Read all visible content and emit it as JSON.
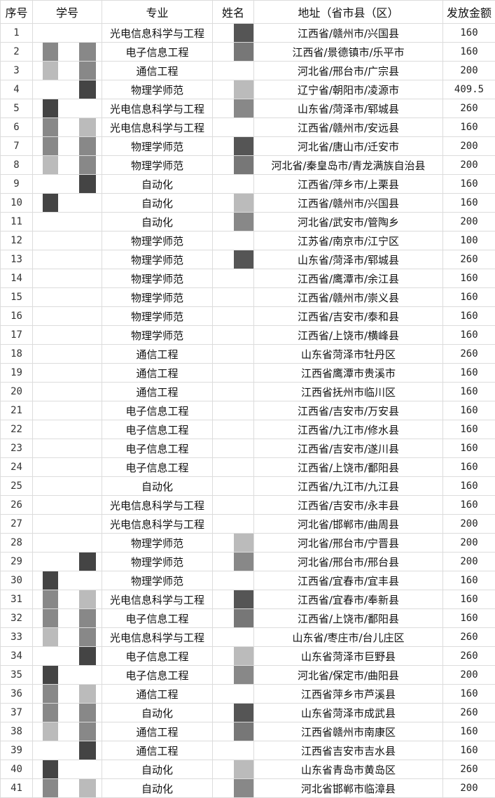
{
  "headers": [
    "序号",
    "学号",
    "专业",
    "姓名",
    "地址（省市县（区）",
    "发放金额"
  ],
  "rows": [
    {
      "no": "1",
      "major": "光电信息科学与工程",
      "address": "江西省/赣州市/兴国县",
      "amount": "160"
    },
    {
      "no": "2",
      "major": "电子信息工程",
      "address": "江西省/景德镇市/乐平市",
      "amount": "160"
    },
    {
      "no": "3",
      "major": "通信工程",
      "address": "河北省/邢台市/广宗县",
      "amount": "200"
    },
    {
      "no": "4",
      "major": "物理学师范",
      "address": "辽宁省/朝阳市/凌源市",
      "amount": "409.5"
    },
    {
      "no": "5",
      "major": "光电信息科学与工程",
      "address": "山东省/菏泽市/郓城县",
      "amount": "260"
    },
    {
      "no": "6",
      "major": "光电信息科学与工程",
      "address": "江西省/赣州市/安远县",
      "amount": "160"
    },
    {
      "no": "7",
      "major": "物理学师范",
      "address": "河北省/唐山市/迁安市",
      "amount": "200"
    },
    {
      "no": "8",
      "major": "物理学师范",
      "address": "河北省/秦皇岛市/青龙满族自治县",
      "amount": "200"
    },
    {
      "no": "9",
      "major": "自动化",
      "address": "江西省/萍乡市/上栗县",
      "amount": "160"
    },
    {
      "no": "10",
      "major": "自动化",
      "address": "江西省/赣州市/兴国县",
      "amount": "160"
    },
    {
      "no": "11",
      "major": "自动化",
      "address": "河北省/武安市/管陶乡",
      "amount": "200"
    },
    {
      "no": "12",
      "major": "物理学师范",
      "address": "江苏省/南京市/江宁区",
      "amount": "100"
    },
    {
      "no": "13",
      "major": "物理学师范",
      "address": "山东省/菏泽市/郓城县",
      "amount": "260"
    },
    {
      "no": "14",
      "major": "物理学师范",
      "address": "江西省/鹰潭市/余江县",
      "amount": "160"
    },
    {
      "no": "15",
      "major": "物理学师范",
      "address": "江西省/赣州市/崇义县",
      "amount": "160"
    },
    {
      "no": "16",
      "major": "物理学师范",
      "address": "江西省/吉安市/泰和县",
      "amount": "160"
    },
    {
      "no": "17",
      "major": "物理学师范",
      "address": "江西省/上饶市/横峰县",
      "amount": "160"
    },
    {
      "no": "18",
      "major": "通信工程",
      "address": "山东省菏泽市牡丹区",
      "amount": "260"
    },
    {
      "no": "19",
      "major": "通信工程",
      "address": "江西省鹰潭市贵溪市",
      "amount": "160"
    },
    {
      "no": "20",
      "major": "通信工程",
      "address": "江西省抚州市临川区",
      "amount": "160"
    },
    {
      "no": "21",
      "major": "电子信息工程",
      "address": "江西省/吉安市/万安县",
      "amount": "160"
    },
    {
      "no": "22",
      "major": "电子信息工程",
      "address": "江西省/九江市/修水县",
      "amount": "160"
    },
    {
      "no": "23",
      "major": "电子信息工程",
      "address": "江西省/吉安市/遂川县",
      "amount": "160"
    },
    {
      "no": "24",
      "major": "电子信息工程",
      "address": "江西省/上饶市/鄱阳县",
      "amount": "160"
    },
    {
      "no": "25",
      "major": "自动化",
      "address": "江西省/九江市/九江县",
      "amount": "160"
    },
    {
      "no": "26",
      "major": "光电信息科学与工程",
      "address": "江西省/吉安市/永丰县",
      "amount": "160"
    },
    {
      "no": "27",
      "major": "光电信息科学与工程",
      "address": "河北省/邯郸市/曲周县",
      "amount": "200"
    },
    {
      "no": "28",
      "major": "物理学师范",
      "address": "河北省/邢台市/宁晋县",
      "amount": "200"
    },
    {
      "no": "29",
      "major": "物理学师范",
      "address": "河北省/邢台市/邢台县",
      "amount": "200"
    },
    {
      "no": "30",
      "major": "物理学师范",
      "address": "江西省/宜春市/宜丰县",
      "amount": "160"
    },
    {
      "no": "31",
      "major": "光电信息科学与工程",
      "address": "江西省/宜春市/奉新县",
      "amount": "160"
    },
    {
      "no": "32",
      "major": "电子信息工程",
      "address": "江西省/上饶市/鄱阳县",
      "amount": "160"
    },
    {
      "no": "33",
      "major": "光电信息科学与工程",
      "address": "山东省/枣庄市/台儿庄区",
      "amount": "260"
    },
    {
      "no": "34",
      "major": "电子信息工程",
      "address": "山东省菏泽市巨野县",
      "amount": "260"
    },
    {
      "no": "35",
      "major": "电子信息工程",
      "address": "河北省/保定市/曲阳县",
      "amount": "200"
    },
    {
      "no": "36",
      "major": "通信工程",
      "address": "江西省萍乡市芦溪县",
      "amount": "160"
    },
    {
      "no": "37",
      "major": "自动化",
      "address": "山东省菏泽市成武县",
      "amount": "260"
    },
    {
      "no": "38",
      "major": "通信工程",
      "address": "江西省赣州市南康区",
      "amount": "160"
    },
    {
      "no": "39",
      "major": "通信工程",
      "address": "江西省吉安市吉水县",
      "amount": "160"
    },
    {
      "no": "40",
      "major": "自动化",
      "address": "山东省青岛市黄岛区",
      "amount": "260"
    },
    {
      "no": "41",
      "major": "自动化",
      "address": "河北省邯郸市临漳县",
      "amount": "200"
    }
  ]
}
